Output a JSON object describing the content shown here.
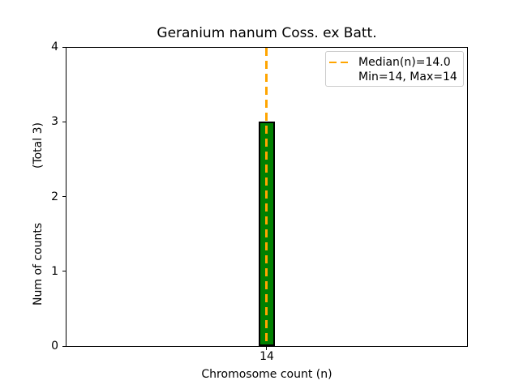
{
  "chart_data": {
    "type": "bar",
    "title": "Geranium nanum Coss. ex Batt.",
    "xlabel": "Chromosome count (n)",
    "ylabel": "Num of counts (Total 3)",
    "ylabel_display": "Num of counts               (Total 3)",
    "categories": [
      "14"
    ],
    "values": [
      3
    ],
    "total_counts": 3,
    "ylim": [
      0,
      4
    ],
    "yticks": [
      0,
      1,
      2,
      3,
      4
    ],
    "grid": false,
    "bar_color": "#008000",
    "bar_edge_color": "#000000",
    "median_line": {
      "x": 14.0,
      "style": "dashed",
      "color": "#ffa500",
      "label": "Median(n)=14.0"
    },
    "stats": {
      "median": 14.0,
      "min": 14,
      "max": 14
    },
    "legend": {
      "position": "upper right",
      "entries": [
        {
          "label": "Median(n)=14.0",
          "marker": "orange-dashed-line"
        },
        {
          "label": "Min=14, Max=14",
          "marker": "none"
        }
      ]
    }
  }
}
